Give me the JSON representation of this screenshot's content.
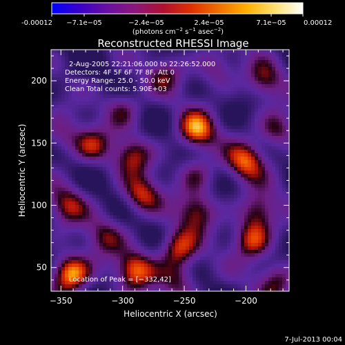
{
  "colorbar": {
    "tick_labels": [
      "-0.00012",
      "−7.1e−05",
      "−2.4e−05",
      "2.4e−05",
      "7.1e−05",
      "0.00012"
    ],
    "unit_prefix": "(photons cm",
    "unit_exp1": "−2",
    "unit_mid": " s",
    "unit_exp2": "−1",
    "unit_mid2": " asec",
    "unit_exp3": "−2",
    "unit_suffix": ")",
    "colors": [
      "#0000ff",
      "#3a00c8",
      "#6a10a0",
      "#8a1878",
      "#b01030",
      "#e03000",
      "#f07000",
      "#ffb000",
      "#ffe070",
      "#ffffff"
    ]
  },
  "chart_data": {
    "type": "heatmap",
    "title": "Reconstructed RHESSI Image",
    "xlabel": "Heliocentric X (arcsec)",
    "ylabel": "Heliocentric Y (arcsec)",
    "xlim": [
      -358,
      -165
    ],
    "ylim": [
      31,
      225
    ],
    "xticks": [
      -350,
      -300,
      -250,
      -200
    ],
    "yticks": [
      50,
      100,
      150,
      200
    ],
    "xtick_labels": [
      "−350",
      "−300",
      "−250",
      "−200"
    ],
    "ytick_labels": [
      "50",
      "100",
      "150",
      "200"
    ],
    "zrange": [
      -0.00012,
      0.00012
    ],
    "sources": [
      {
        "x": -342,
        "y": 45,
        "amp": 1.0
      },
      {
        "x": -290,
        "y": 48,
        "amp": 0.75
      },
      {
        "x": -285,
        "y": 108,
        "amp": 0.65
      },
      {
        "x": -292,
        "y": 140,
        "amp": 0.55
      },
      {
        "x": -325,
        "y": 148,
        "amp": 0.5
      },
      {
        "x": -300,
        "y": 178,
        "amp": 0.45
      },
      {
        "x": -240,
        "y": 160,
        "amp": 0.8
      },
      {
        "x": -240,
        "y": 125,
        "amp": 0.4
      },
      {
        "x": -240,
        "y": 95,
        "amp": 0.6
      },
      {
        "x": -255,
        "y": 65,
        "amp": 0.7
      },
      {
        "x": -195,
        "y": 72,
        "amp": 0.7
      },
      {
        "x": -190,
        "y": 95,
        "amp": 0.6
      },
      {
        "x": -200,
        "y": 135,
        "amp": 0.7
      },
      {
        "x": -175,
        "y": 160,
        "amp": 0.55
      },
      {
        "x": -185,
        "y": 200,
        "amp": 0.5
      },
      {
        "x": -345,
        "y": 100,
        "amp": 0.55
      },
      {
        "x": -350,
        "y": 155,
        "amp": 0.4
      },
      {
        "x": -315,
        "y": 75,
        "amp": 0.45
      },
      {
        "x": -255,
        "y": 40,
        "amp": 0.5
      },
      {
        "x": -265,
        "y": 205,
        "amp": 0.4
      },
      {
        "x": -225,
        "y": 210,
        "amp": 0.45
      },
      {
        "x": -175,
        "y": 40,
        "amp": 0.5
      }
    ],
    "annotations": {
      "line1": "2-Aug-2005 22:21:06.000 to 22:26:52.000",
      "line2": "Detectors: 4F 5F 6F 7F 8F, Att 0",
      "line3": "Energy Range: 25.0 - 50.0 keV",
      "line4": "Clean     Total counts: 5.90E+03",
      "peak": "Location of Peak = [−332,42]"
    }
  },
  "footer": {
    "timestamp": "7-Jul-2013 00:04"
  }
}
